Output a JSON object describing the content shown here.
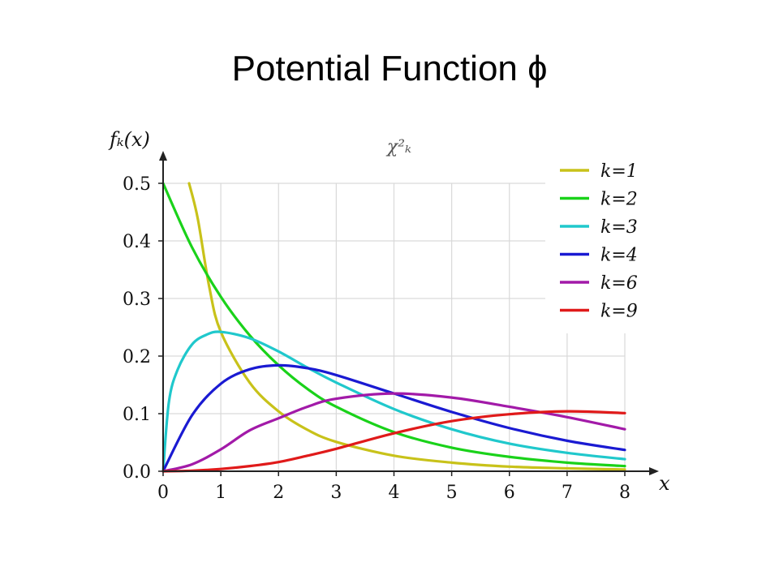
{
  "slide": {
    "title": "Potential Function ɸ"
  },
  "chart_data": {
    "type": "line",
    "title": "χ²ₖ",
    "xlabel": "x",
    "ylabel": "fₖ(x)",
    "xlim": [
      0,
      8
    ],
    "ylim": [
      0,
      0.5
    ],
    "grid": true,
    "legend_position": "top-right",
    "x_ticks": [
      "0",
      "1",
      "2",
      "3",
      "4",
      "5",
      "6",
      "7",
      "8"
    ],
    "y_ticks": [
      "0.0",
      "0.1",
      "0.2",
      "0.3",
      "0.4",
      "0.5"
    ],
    "series": [
      {
        "name": "k=1",
        "k": 1,
        "color": "#c8c21a",
        "x": [
          0.45,
          0.6,
          0.8,
          1,
          1.5,
          2,
          2.5,
          3,
          4,
          5,
          6,
          7,
          8
        ],
        "y": [
          0.5,
          0.439,
          0.32,
          0.242,
          0.154,
          0.104,
          0.072,
          0.051,
          0.027,
          0.015,
          0.008,
          0.005,
          0.003
        ]
      },
      {
        "name": "k=2",
        "k": 2,
        "color": "#1ad21a",
        "x": [
          0,
          0.5,
          1,
          1.5,
          2,
          2.5,
          3,
          4,
          5,
          6,
          7,
          8
        ],
        "y": [
          0.5,
          0.389,
          0.303,
          0.236,
          0.184,
          0.143,
          0.112,
          0.068,
          0.041,
          0.025,
          0.015,
          0.009
        ]
      },
      {
        "name": "k=3",
        "k": 3,
        "color": "#20c8cc",
        "x": [
          0,
          0.1,
          0.25,
          0.5,
          0.75,
          1,
          1.5,
          2,
          2.5,
          3,
          4,
          5,
          6,
          7,
          8
        ],
        "y": [
          0,
          0.12,
          0.176,
          0.22,
          0.237,
          0.242,
          0.231,
          0.208,
          0.18,
          0.154,
          0.108,
          0.073,
          0.048,
          0.032,
          0.021
        ]
      },
      {
        "name": "k=4",
        "k": 4,
        "color": "#1a1ad2",
        "x": [
          0,
          0.5,
          1,
          1.5,
          2,
          2.5,
          3,
          4,
          5,
          6,
          7,
          8
        ],
        "y": [
          0,
          0.097,
          0.152,
          0.177,
          0.184,
          0.179,
          0.167,
          0.135,
          0.103,
          0.075,
          0.053,
          0.037
        ]
      },
      {
        "name": "k=6",
        "k": 6,
        "color": "#a21aa8",
        "x": [
          0,
          0.5,
          1,
          1.5,
          2,
          2.5,
          3,
          4,
          5,
          6,
          7,
          8
        ],
        "y": [
          0,
          0.012,
          0.038,
          0.071,
          0.092,
          0.112,
          0.126,
          0.135,
          0.128,
          0.112,
          0.094,
          0.073
        ]
      },
      {
        "name": "k=9",
        "k": 9,
        "color": "#e01a1a",
        "x": [
          0,
          0.5,
          1,
          1.5,
          2,
          2.5,
          3,
          4,
          5,
          6,
          7,
          8
        ],
        "y": [
          0,
          0.001,
          0.004,
          0.009,
          0.016,
          0.027,
          0.039,
          0.066,
          0.087,
          0.099,
          0.104,
          0.101
        ]
      }
    ]
  }
}
